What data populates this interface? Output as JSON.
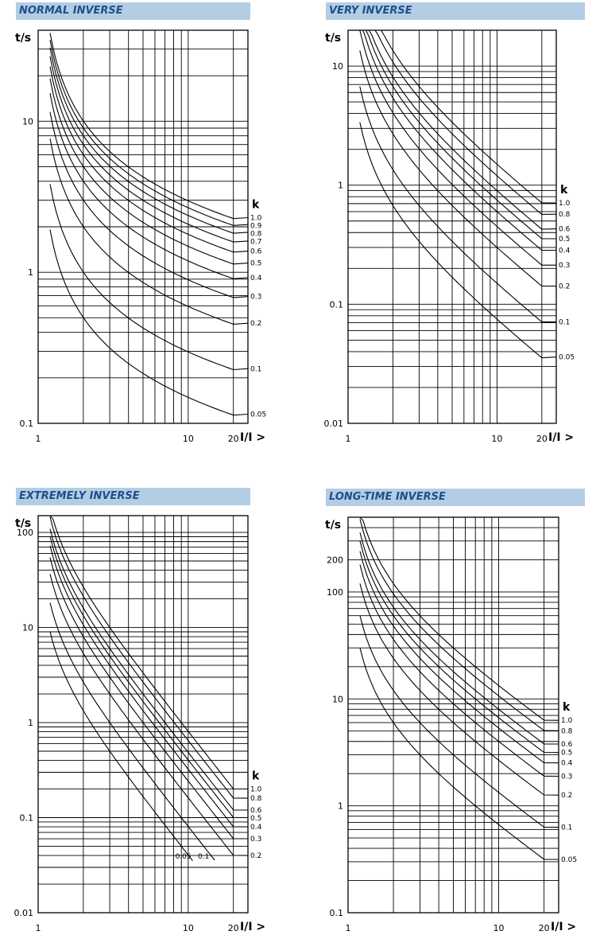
{
  "chart_data": [
    {
      "type": "line",
      "title": "NORMAL INVERSE",
      "xlabel": "I/I >",
      "ylabel": "t/s",
      "x_scale": "log",
      "y_scale": "log",
      "xlim": [
        1,
        25
      ],
      "ylim": [
        0.1,
        40
      ],
      "x_ticks": [
        {
          "v": 1,
          "label": "1"
        },
        {
          "v": 10,
          "label": "10"
        },
        {
          "v": 20,
          "label": "20"
        }
      ],
      "y_ticks": [
        {
          "v": 0.1,
          "label": "0.1"
        },
        {
          "v": 1,
          "label": "1"
        },
        {
          "v": 10,
          "label": "10"
        }
      ],
      "legend_title": "k",
      "curve": {
        "x_from": 1.2,
        "x_to": 20
      },
      "series": [
        {
          "name": "1.0",
          "k": 1.0,
          "end_value": 2.3
        },
        {
          "name": "0.9",
          "k": 0.9,
          "end_value": 2.07
        },
        {
          "name": "0.8",
          "k": 0.8,
          "end_value": 1.84
        },
        {
          "name": "0.7",
          "k": 0.7,
          "end_value": 1.61
        },
        {
          "name": "0.6",
          "k": 0.6,
          "end_value": 1.38
        },
        {
          "name": "0.5",
          "k": 0.5,
          "end_value": 1.15
        },
        {
          "name": "0.4",
          "k": 0.4,
          "end_value": 0.92
        },
        {
          "name": "0.3",
          "k": 0.3,
          "end_value": 0.69
        },
        {
          "name": "0.2",
          "k": 0.2,
          "end_value": 0.46
        },
        {
          "name": "0.1",
          "k": 0.1,
          "end_value": 0.23
        },
        {
          "name": "0.05",
          "k": 0.05,
          "end_value": 0.115
        }
      ]
    },
    {
      "type": "line",
      "title": "VERY INVERSE",
      "xlabel": "I/I >",
      "ylabel": "t/s",
      "x_scale": "log",
      "y_scale": "log",
      "xlim": [
        1,
        25
      ],
      "ylim": [
        0.01,
        20
      ],
      "x_ticks": [
        {
          "v": 1,
          "label": "1"
        },
        {
          "v": 10,
          "label": "10"
        },
        {
          "v": 20,
          "label": "20"
        }
      ],
      "y_ticks": [
        {
          "v": 0.01,
          "label": "0.01"
        },
        {
          "v": 0.1,
          "label": "0.1"
        },
        {
          "v": 1,
          "label": "1"
        },
        {
          "v": 10,
          "label": "10"
        }
      ],
      "legend_title": "k",
      "curve": {
        "x_from": 1.2,
        "x_to": 20
      },
      "series": [
        {
          "name": "1.0",
          "k": 1.0,
          "end_value": 0.71
        },
        {
          "name": "0.8",
          "k": 0.8,
          "end_value": 0.57
        },
        {
          "name": "0.6",
          "k": 0.6,
          "end_value": 0.43
        },
        {
          "name": "0.5",
          "k": 0.5,
          "end_value": 0.355
        },
        {
          "name": "0.4",
          "k": 0.4,
          "end_value": 0.284
        },
        {
          "name": "0.3",
          "k": 0.3,
          "end_value": 0.213
        },
        {
          "name": "0.2",
          "k": 0.2,
          "end_value": 0.142
        },
        {
          "name": "0.1",
          "k": 0.1,
          "end_value": 0.071
        },
        {
          "name": "0.05",
          "k": 0.05,
          "end_value": 0.036
        }
      ]
    },
    {
      "type": "line",
      "title": "EXTREMELY INVERSE",
      "xlabel": "I/I >",
      "ylabel": "t/s",
      "x_scale": "log",
      "y_scale": "log",
      "xlim": [
        1,
        25
      ],
      "ylim": [
        0.01,
        150
      ],
      "x_ticks": [
        {
          "v": 1,
          "label": "1"
        },
        {
          "v": 10,
          "label": "10"
        },
        {
          "v": 20,
          "label": "20"
        }
      ],
      "y_ticks": [
        {
          "v": 0.01,
          "label": "0.01"
        },
        {
          "v": 0.1,
          "label": "0.1"
        },
        {
          "v": 1,
          "label": "1"
        },
        {
          "v": 10,
          "label": "10"
        },
        {
          "v": 100,
          "label": "100"
        }
      ],
      "legend_title": "k",
      "curve": {
        "x_from": 1.2,
        "x_to": 20
      },
      "series": [
        {
          "name": "1.0",
          "k": 1.0,
          "end_value": 0.2
        },
        {
          "name": "0.8",
          "k": 0.8,
          "end_value": 0.16
        },
        {
          "name": "0.6",
          "k": 0.6,
          "end_value": 0.12
        },
        {
          "name": "0.5",
          "k": 0.5,
          "end_value": 0.1
        },
        {
          "name": "0.4",
          "k": 0.4,
          "end_value": 0.08
        },
        {
          "name": "0.3",
          "k": 0.3,
          "end_value": 0.06
        },
        {
          "name": "0.2",
          "k": 0.2,
          "end_value": 0.04
        },
        {
          "name": "0.1",
          "k": 0.1,
          "end_value": 0.035,
          "stop_x": 15
        },
        {
          "name": "0.05",
          "k": 0.05,
          "end_value": 0.035,
          "stop_x": 10.7
        }
      ],
      "inline_labels": [
        "0.05",
        "0.1"
      ]
    },
    {
      "type": "line",
      "title": "LONG-TIME INVERSE",
      "xlabel": "I/I >",
      "ylabel": "t/s",
      "x_scale": "log",
      "y_scale": "log",
      "xlim": [
        1,
        25
      ],
      "ylim": [
        0.1,
        500
      ],
      "x_ticks": [
        {
          "v": 1,
          "label": "1"
        },
        {
          "v": 10,
          "label": "10"
        },
        {
          "v": 20,
          "label": "20"
        }
      ],
      "y_ticks": [
        {
          "v": 0.1,
          "label": "0.1"
        },
        {
          "v": 1,
          "label": "1"
        },
        {
          "v": 10,
          "label": "10"
        },
        {
          "v": 100,
          "label": "100"
        },
        {
          "v": 200,
          "label": "200"
        }
      ],
      "legend_title": "k",
      "curve": {
        "x_from": 1.2,
        "x_to": 20
      },
      "series": [
        {
          "name": "1.0",
          "k": 1.0,
          "end_value": 6.3
        },
        {
          "name": "0.8",
          "k": 0.8,
          "end_value": 5.04
        },
        {
          "name": "0.6",
          "k": 0.6,
          "end_value": 3.78
        },
        {
          "name": "0.5",
          "k": 0.5,
          "end_value": 3.15
        },
        {
          "name": "0.4",
          "k": 0.4,
          "end_value": 2.52
        },
        {
          "name": "0.3",
          "k": 0.3,
          "end_value": 1.89
        },
        {
          "name": "0.2",
          "k": 0.2,
          "end_value": 1.26
        },
        {
          "name": "0.1",
          "k": 0.1,
          "end_value": 0.63
        },
        {
          "name": "0.05",
          "k": 0.05,
          "end_value": 0.315
        }
      ]
    }
  ]
}
